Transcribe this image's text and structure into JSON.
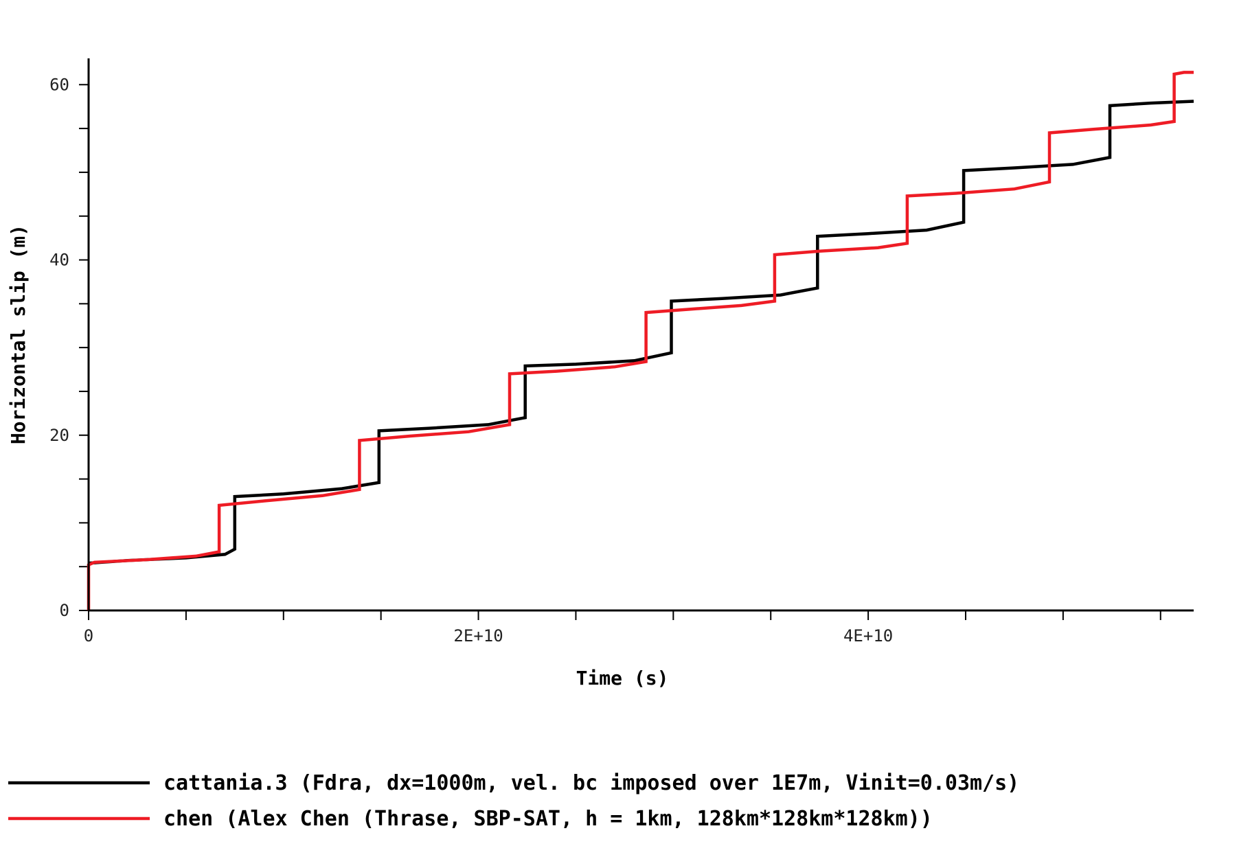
{
  "chart_data": {
    "type": "line",
    "xlabel": "Time (s)",
    "ylabel": "Horizontal slip (m)",
    "xlim": [
      0,
      56700000000
    ],
    "ylim": [
      0,
      63
    ],
    "x_ticks": [
      {
        "value": 0,
        "label": "0"
      },
      {
        "value": 20000000000,
        "label": "2E+10"
      },
      {
        "value": 40000000000,
        "label": "4E+10"
      }
    ],
    "x_minor_step": 5000000000,
    "y_ticks": [
      {
        "value": 0,
        "label": "0"
      },
      {
        "value": 20,
        "label": "20"
      },
      {
        "value": 40,
        "label": "40"
      },
      {
        "value": 60,
        "label": "60"
      }
    ],
    "y_minor_step": 5,
    "grid": false,
    "legend_position": "bottom",
    "series": [
      {
        "name": "cattania.3 (Fdra, dx=1000m, vel. bc imposed over 1E7m, Vinit=0.03m/s)",
        "color": "#000000",
        "points": [
          [
            0,
            5.4
          ],
          [
            2000000000,
            5.7
          ],
          [
            5000000000,
            6.0
          ],
          [
            7000000000,
            6.4
          ],
          [
            7500000000,
            7.0
          ],
          [
            7500000000,
            13.0
          ],
          [
            10000000000,
            13.3
          ],
          [
            13000000000,
            13.9
          ],
          [
            14900000000,
            14.6
          ],
          [
            14900000000,
            20.5
          ],
          [
            17500000000,
            20.8
          ],
          [
            20500000000,
            21.2
          ],
          [
            22400000000,
            22.0
          ],
          [
            22400000000,
            27.9
          ],
          [
            25000000000,
            28.1
          ],
          [
            28000000000,
            28.5
          ],
          [
            29900000000,
            29.4
          ],
          [
            29900000000,
            35.3
          ],
          [
            32500000000,
            35.6
          ],
          [
            35500000000,
            36.0
          ],
          [
            37400000000,
            36.8
          ],
          [
            37400000000,
            42.7
          ],
          [
            40000000000,
            43.0
          ],
          [
            43000000000,
            43.4
          ],
          [
            44900000000,
            44.3
          ],
          [
            44900000000,
            50.2
          ],
          [
            47500000000,
            50.5
          ],
          [
            50500000000,
            50.9
          ],
          [
            52400000000,
            51.7
          ],
          [
            52400000000,
            57.6
          ],
          [
            54500000000,
            57.9
          ],
          [
            56700000000,
            58.1
          ]
        ]
      },
      {
        "name": "chen (Alex Chen (Thrase, SBP-SAT, h = 1km, 128km*128km*128km))",
        "color": "#ee1c25",
        "points": [
          [
            0,
            0
          ],
          [
            0,
            5.2
          ],
          [
            300000000,
            5.5
          ],
          [
            3000000000,
            5.8
          ],
          [
            5500000000,
            6.2
          ],
          [
            6700000000,
            6.7
          ],
          [
            6700000000,
            12.0
          ],
          [
            9000000000,
            12.5
          ],
          [
            12000000000,
            13.1
          ],
          [
            13900000000,
            13.8
          ],
          [
            13900000000,
            19.4
          ],
          [
            16500000000,
            19.9
          ],
          [
            19500000000,
            20.4
          ],
          [
            21600000000,
            21.2
          ],
          [
            21600000000,
            27.0
          ],
          [
            24000000000,
            27.3
          ],
          [
            27000000000,
            27.8
          ],
          [
            28600000000,
            28.4
          ],
          [
            28600000000,
            34.0
          ],
          [
            31000000000,
            34.4
          ],
          [
            33500000000,
            34.8
          ],
          [
            35200000000,
            35.3
          ],
          [
            35200000000,
            40.6
          ],
          [
            37500000000,
            41.0
          ],
          [
            40500000000,
            41.4
          ],
          [
            42000000000,
            41.9
          ],
          [
            42000000000,
            47.3
          ],
          [
            44500000000,
            47.6
          ],
          [
            47500000000,
            48.1
          ],
          [
            49300000000,
            48.9
          ],
          [
            49300000000,
            54.5
          ],
          [
            51500000000,
            54.9
          ],
          [
            54500000000,
            55.4
          ],
          [
            55700000000,
            55.8
          ],
          [
            55700000000,
            61.2
          ],
          [
            56200000000,
            61.4
          ],
          [
            56700000000,
            61.4
          ]
        ]
      }
    ]
  }
}
